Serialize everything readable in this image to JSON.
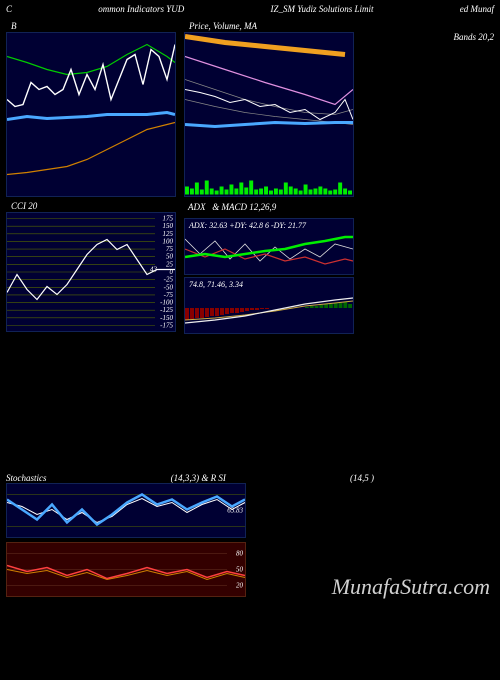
{
  "header": {
    "left": "C",
    "mid1": "ommon Indicators YUD",
    "mid2": "IZ_SM Yudiz Solutions Limit",
    "right": "ed Munaf"
  },
  "panel_b": {
    "title": "B",
    "bg": "#000033",
    "lines": {
      "white": {
        "color": "#ffffff",
        "width": 1.4,
        "pts": [
          [
            0,
            65
          ],
          [
            8,
            72
          ],
          [
            16,
            70
          ],
          [
            24,
            48
          ],
          [
            32,
            55
          ],
          [
            40,
            52
          ],
          [
            48,
            60
          ],
          [
            56,
            55
          ],
          [
            64,
            35
          ],
          [
            72,
            60
          ],
          [
            80,
            40
          ],
          [
            88,
            55
          ],
          [
            96,
            30
          ],
          [
            104,
            65
          ],
          [
            112,
            45
          ],
          [
            120,
            25
          ],
          [
            128,
            20
          ],
          [
            136,
            50
          ],
          [
            144,
            15
          ],
          [
            152,
            22
          ],
          [
            160,
            45
          ],
          [
            168,
            10
          ]
        ]
      },
      "green": {
        "color": "#00cc00",
        "width": 1.2,
        "pts": [
          [
            0,
            22
          ],
          [
            20,
            28
          ],
          [
            40,
            35
          ],
          [
            60,
            40
          ],
          [
            80,
            38
          ],
          [
            100,
            32
          ],
          [
            120,
            20
          ],
          [
            140,
            10
          ],
          [
            160,
            22
          ],
          [
            168,
            28
          ]
        ]
      },
      "blue": {
        "color": "#4aa8ff",
        "width": 3,
        "pts": [
          [
            0,
            85
          ],
          [
            20,
            82
          ],
          [
            40,
            84
          ],
          [
            60,
            83
          ],
          [
            80,
            82
          ],
          [
            100,
            80
          ],
          [
            120,
            80
          ],
          [
            140,
            80
          ],
          [
            160,
            78
          ],
          [
            168,
            80
          ]
        ]
      },
      "orange": {
        "color": "#d08000",
        "width": 1.2,
        "pts": [
          [
            0,
            140
          ],
          [
            20,
            138
          ],
          [
            40,
            135
          ],
          [
            60,
            132
          ],
          [
            80,
            125
          ],
          [
            100,
            115
          ],
          [
            120,
            105
          ],
          [
            140,
            95
          ],
          [
            160,
            90
          ],
          [
            168,
            88
          ]
        ]
      }
    }
  },
  "panel_price": {
    "title": "Price, Volume, MA",
    "title_right": "Bands 20,2",
    "bg": "#000033",
    "orange_band": {
      "color": "#f0a020",
      "width": 5,
      "pts": [
        [
          0,
          2
        ],
        [
          40,
          8
        ],
        [
          80,
          12
        ],
        [
          120,
          16
        ],
        [
          160,
          20
        ]
      ]
    },
    "pink": {
      "color": "#e090e0",
      "width": 1.2,
      "pts": [
        [
          0,
          22
        ],
        [
          40,
          35
        ],
        [
          80,
          48
        ],
        [
          120,
          60
        ],
        [
          150,
          70
        ],
        [
          168,
          55
        ]
      ]
    },
    "white": {
      "color": "#ffffff",
      "width": 1,
      "pts": [
        [
          0,
          55
        ],
        [
          15,
          58
        ],
        [
          30,
          62
        ],
        [
          45,
          68
        ],
        [
          60,
          65
        ],
        [
          75,
          72
        ],
        [
          90,
          70
        ],
        [
          105,
          78
        ],
        [
          120,
          75
        ],
        [
          135,
          85
        ],
        [
          150,
          78
        ],
        [
          160,
          65
        ],
        [
          168,
          85
        ]
      ]
    },
    "blue": {
      "color": "#4aa8ff",
      "width": 3,
      "pts": [
        [
          0,
          90
        ],
        [
          30,
          92
        ],
        [
          60,
          90
        ],
        [
          90,
          88
        ],
        [
          120,
          89
        ],
        [
          150,
          88
        ],
        [
          168,
          88
        ]
      ]
    },
    "gray1": {
      "color": "#888888",
      "width": 0.7,
      "pts": [
        [
          0,
          45
        ],
        [
          30,
          55
        ],
        [
          60,
          65
        ],
        [
          90,
          72
        ],
        [
          120,
          78
        ],
        [
          150,
          80
        ],
        [
          168,
          75
        ]
      ]
    },
    "gray2": {
      "color": "#888888",
      "width": 0.7,
      "pts": [
        [
          0,
          65
        ],
        [
          30,
          72
        ],
        [
          60,
          78
        ],
        [
          90,
          82
        ],
        [
          120,
          85
        ],
        [
          150,
          88
        ],
        [
          168,
          90
        ]
      ]
    },
    "volume": {
      "color": "#00ee00",
      "heights": [
        8,
        6,
        12,
        5,
        14,
        6,
        4,
        8,
        5,
        10,
        6,
        12,
        7,
        14,
        5,
        6,
        8,
        4,
        6,
        5,
        12,
        8,
        6,
        4,
        10,
        5,
        6,
        8,
        6,
        4,
        5,
        12,
        6,
        4
      ]
    }
  },
  "panel_cci": {
    "title": "CCI 20",
    "marker_label": "43",
    "ticks": [
      175,
      150,
      125,
      100,
      75,
      50,
      25,
      0,
      -25,
      -50,
      -75,
      -100,
      -125,
      -150,
      -175
    ],
    "line": {
      "color": "#ffffff",
      "width": 1.2,
      "pts": [
        [
          0,
          78
        ],
        [
          10,
          60
        ],
        [
          20,
          75
        ],
        [
          30,
          85
        ],
        [
          40,
          72
        ],
        [
          50,
          80
        ],
        [
          60,
          70
        ],
        [
          70,
          55
        ],
        [
          80,
          40
        ],
        [
          90,
          30
        ],
        [
          100,
          25
        ],
        [
          110,
          35
        ],
        [
          120,
          30
        ],
        [
          130,
          45
        ],
        [
          140,
          60
        ],
        [
          150,
          55
        ],
        [
          160,
          55
        ],
        [
          168,
          55
        ]
      ]
    }
  },
  "panel_adx": {
    "label": "ADX: 32.63 +DY: 42.8       6 -DY: 21.77",
    "green": {
      "color": "#00ee00",
      "width": 2.5,
      "pts": [
        [
          0,
          38
        ],
        [
          20,
          35
        ],
        [
          40,
          38
        ],
        [
          60,
          35
        ],
        [
          80,
          32
        ],
        [
          100,
          30
        ],
        [
          120,
          25
        ],
        [
          140,
          22
        ],
        [
          160,
          18
        ],
        [
          168,
          18
        ]
      ]
    },
    "red": {
      "color": "#cc3030",
      "width": 1.2,
      "pts": [
        [
          0,
          30
        ],
        [
          20,
          38
        ],
        [
          40,
          30
        ],
        [
          60,
          40
        ],
        [
          80,
          35
        ],
        [
          100,
          42
        ],
        [
          120,
          38
        ],
        [
          140,
          45
        ],
        [
          160,
          40
        ],
        [
          168,
          42
        ]
      ]
    },
    "white": {
      "color": "#dddddd",
      "width": 0.8,
      "pts": [
        [
          0,
          20
        ],
        [
          15,
          35
        ],
        [
          30,
          22
        ],
        [
          45,
          40
        ],
        [
          60,
          25
        ],
        [
          75,
          42
        ],
        [
          90,
          28
        ],
        [
          105,
          40
        ],
        [
          120,
          30
        ],
        [
          135,
          38
        ],
        [
          150,
          25
        ],
        [
          168,
          30
        ]
      ]
    }
  },
  "panel_macd": {
    "label": "74.8, 71.46, 3.34",
    "bars_neg": {
      "color": "#880000",
      "range": [
        0,
        85
      ],
      "heights": [
        12,
        11,
        10,
        10,
        9,
        8,
        8,
        7,
        6,
        5,
        5,
        4,
        3,
        2,
        2,
        1,
        1
      ]
    },
    "bars_pos": {
      "color": "#006600",
      "range": [
        120,
        168
      ],
      "heights": [
        1,
        2,
        2,
        3,
        4,
        4,
        5,
        5,
        6,
        4
      ]
    },
    "white": {
      "color": "#eeeeee",
      "width": 1.2,
      "pts": [
        [
          0,
          45
        ],
        [
          30,
          42
        ],
        [
          60,
          38
        ],
        [
          90,
          32
        ],
        [
          120,
          26
        ],
        [
          150,
          22
        ],
        [
          168,
          20
        ]
      ]
    },
    "yellow": {
      "color": "#ccaa40",
      "width": 1,
      "pts": [
        [
          0,
          42
        ],
        [
          30,
          40
        ],
        [
          60,
          37
        ],
        [
          90,
          33
        ],
        [
          120,
          28
        ],
        [
          150,
          25
        ],
        [
          168,
          23
        ]
      ]
    }
  },
  "panel_stoch": {
    "title_left": "Stochastics",
    "title_mid": "(14,3,3) & R                SI",
    "title_right": "(14,5                              )",
    "tick": "63.83",
    "blue": {
      "color": "#4aa8ff",
      "width": 2.5,
      "pts": [
        [
          0,
          15
        ],
        [
          15,
          25
        ],
        [
          30,
          35
        ],
        [
          45,
          20
        ],
        [
          60,
          38
        ],
        [
          75,
          25
        ],
        [
          90,
          40
        ],
        [
          105,
          30
        ],
        [
          120,
          18
        ],
        [
          135,
          10
        ],
        [
          150,
          20
        ],
        [
          165,
          15
        ],
        [
          180,
          25
        ],
        [
          195,
          18
        ],
        [
          210,
          12
        ],
        [
          225,
          22
        ],
        [
          238,
          15
        ]
      ]
    },
    "white": {
      "color": "#ffffff",
      "width": 1,
      "pts": [
        [
          0,
          18
        ],
        [
          15,
          22
        ],
        [
          30,
          30
        ],
        [
          45,
          25
        ],
        [
          60,
          35
        ],
        [
          75,
          28
        ],
        [
          90,
          38
        ],
        [
          105,
          32
        ],
        [
          120,
          20
        ],
        [
          135,
          14
        ],
        [
          150,
          22
        ],
        [
          165,
          18
        ],
        [
          180,
          28
        ],
        [
          195,
          20
        ],
        [
          210,
          15
        ],
        [
          225,
          25
        ],
        [
          238,
          18
        ]
      ]
    }
  },
  "panel_rsi": {
    "ticks": [
      "80",
      "50",
      "20"
    ],
    "red": {
      "color": "#ff4040",
      "width": 1.5,
      "pts": [
        [
          0,
          22
        ],
        [
          20,
          28
        ],
        [
          40,
          24
        ],
        [
          60,
          32
        ],
        [
          80,
          26
        ],
        [
          100,
          35
        ],
        [
          120,
          30
        ],
        [
          140,
          24
        ],
        [
          160,
          30
        ],
        [
          180,
          26
        ],
        [
          200,
          34
        ],
        [
          220,
          28
        ],
        [
          238,
          32
        ]
      ]
    },
    "orange": {
      "color": "#d08000",
      "width": 1,
      "pts": [
        [
          0,
          26
        ],
        [
          20,
          30
        ],
        [
          40,
          27
        ],
        [
          60,
          34
        ],
        [
          80,
          29
        ],
        [
          100,
          36
        ],
        [
          120,
          32
        ],
        [
          140,
          27
        ],
        [
          160,
          32
        ],
        [
          180,
          28
        ],
        [
          200,
          36
        ],
        [
          220,
          30
        ],
        [
          238,
          34
        ]
      ]
    }
  },
  "watermark": "MunafaSutra.com"
}
